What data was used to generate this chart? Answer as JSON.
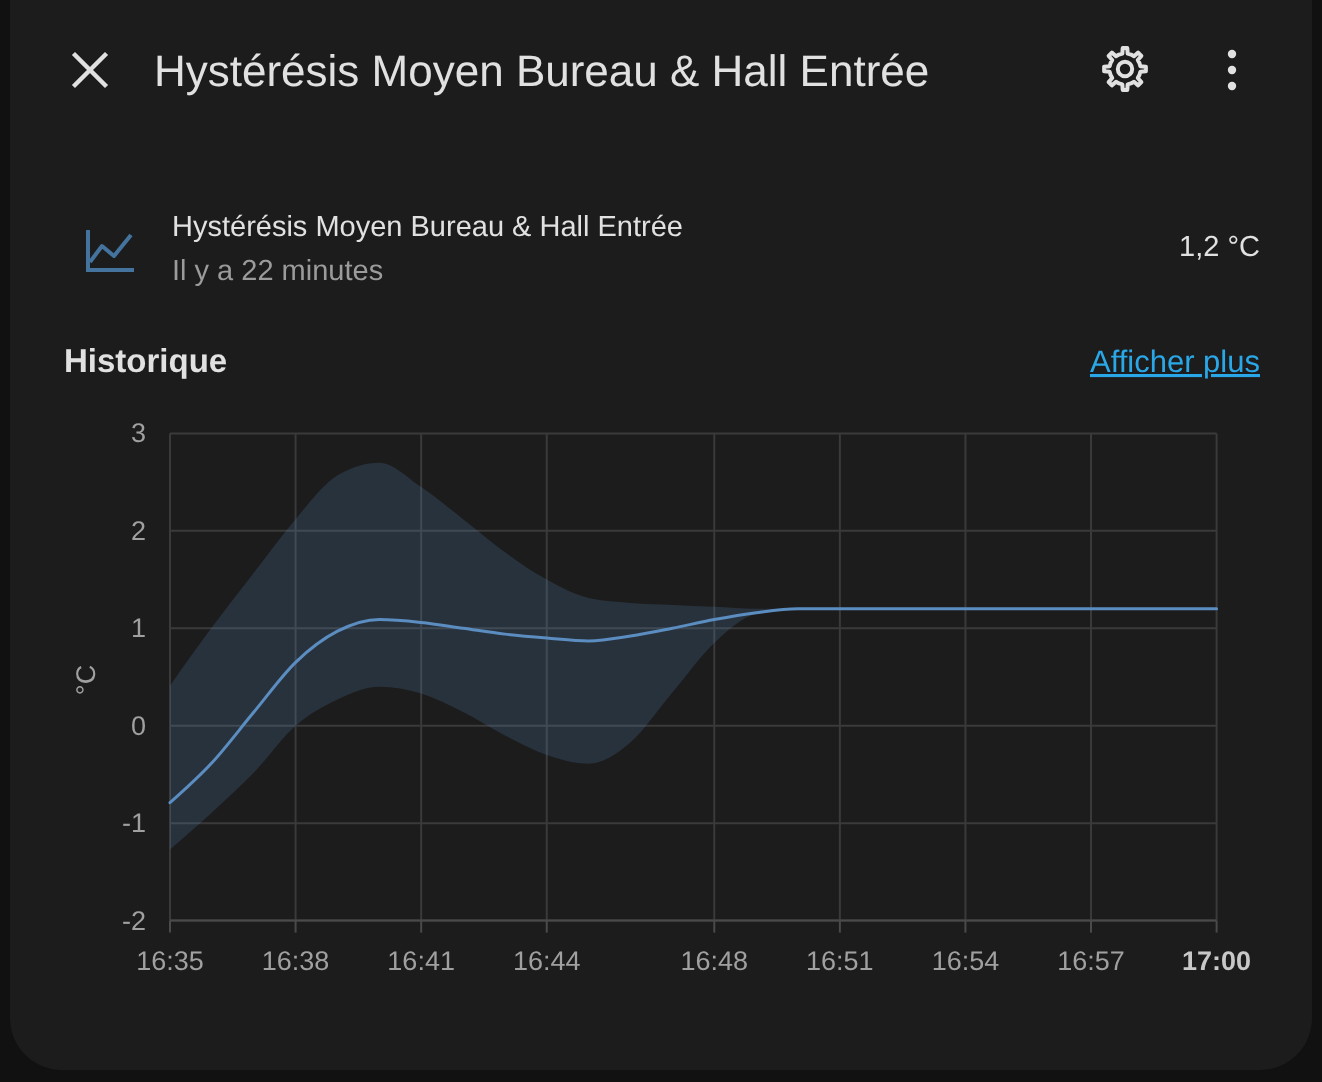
{
  "chart_data": {
    "type": "line",
    "title": "Hystérésis Moyen Bureau & Hall Entrée",
    "annotations": [
      "Hystérésis Moyen Bureau & Hall Entrée",
      "Il y a 22 minutes",
      "1,2 °C",
      "Historique",
      "Afficher plus"
    ],
    "ylabel": "°C",
    "x": [
      16.5833,
      16.6,
      16.6167,
      16.6333,
      16.65,
      16.6667,
      16.6833,
      16.7,
      16.7167,
      16.7333,
      16.75,
      16.7667,
      16.7833,
      16.8,
      16.8167,
      16.8333,
      16.9167,
      17
    ],
    "series": [
      {
        "color": "#5b8dc1",
        "values": [
          -0.79,
          -0.38,
          0.14,
          0.65,
          0.97,
          1.09,
          1.06,
          1.0,
          0.94,
          0.9,
          0.87,
          0.92,
          1.0,
          1.09,
          1.16,
          1.2,
          1.2,
          1.2
        ],
        "lower": [
          -1.27,
          -0.89,
          -0.48,
          0.0,
          0.27,
          0.4,
          0.33,
          0.14,
          -0.1,
          -0.3,
          -0.39,
          -0.17,
          0.34,
          0.85,
          1.15,
          1.2,
          1.2,
          1.2
        ],
        "upper": [
          0.41,
          1.01,
          1.57,
          2.12,
          2.57,
          2.7,
          2.45,
          2.12,
          1.78,
          1.5,
          1.31,
          1.26,
          1.24,
          1.22,
          1.2,
          1.2,
          1.2,
          1.2
        ]
      }
    ],
    "xlim": [
      16.5833,
      17
    ],
    "xticks": [
      {
        "value": 16.5833,
        "label": "16:35"
      },
      {
        "value": 16.6333,
        "label": "16:38"
      },
      {
        "value": 16.6833,
        "label": "16:41"
      },
      {
        "value": 16.7333,
        "label": "16:44"
      },
      {
        "value": 16.8,
        "label": "16:48"
      },
      {
        "value": 16.85,
        "label": "16:51"
      },
      {
        "value": 16.9,
        "label": "16:54"
      },
      {
        "value": 16.95,
        "label": "16:57"
      },
      {
        "value": 17,
        "label": "17:00"
      }
    ],
    "ylim": [
      -2,
      3
    ],
    "yticks": [
      -2,
      -1,
      0,
      1,
      2,
      3
    ],
    "grid": true,
    "line_style": "solid"
  }
}
